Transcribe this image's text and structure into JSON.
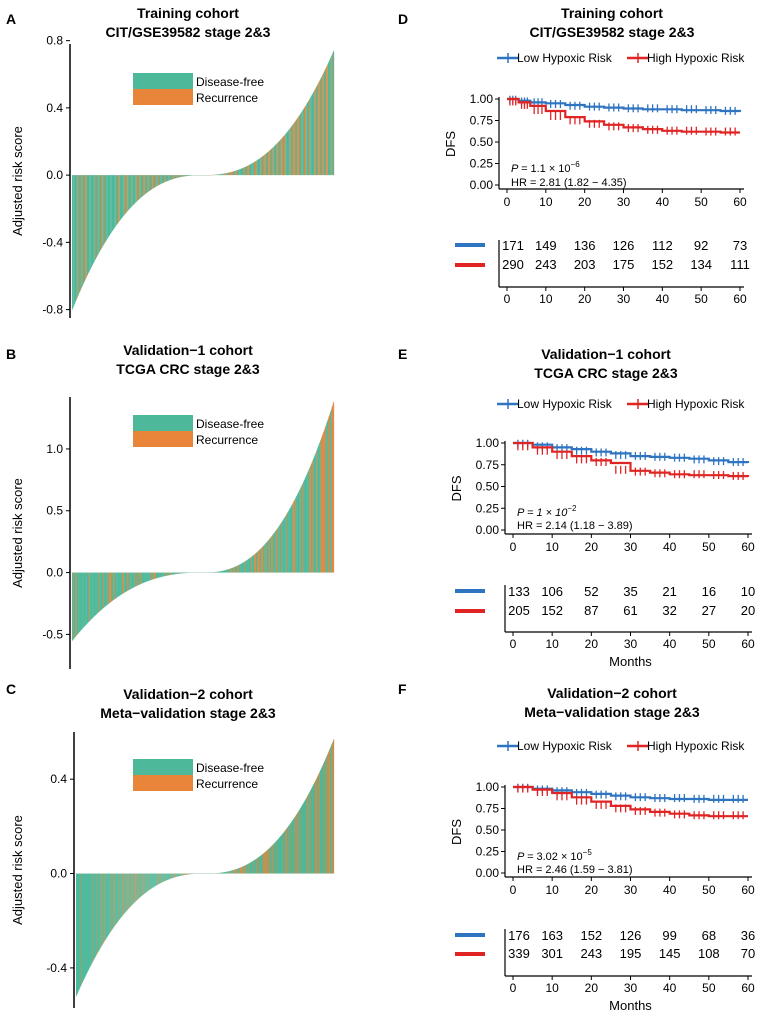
{
  "colors": {
    "disease_free": "#4DB89A",
    "recurrence": "#E8853A",
    "low_risk": "#2F74C0",
    "high_risk": "#E02424",
    "axis": "#000000"
  },
  "chart_data": [
    {
      "panel": "A",
      "type": "bar",
      "title": "Training cohort",
      "subtitle": "CIT/GSE39582 stage 2&3",
      "ylabel": "Adjusted risk score",
      "ylim": [
        -0.85,
        0.78
      ],
      "yticks": [
        -0.8,
        -0.4,
        0.0,
        0.4,
        0.8
      ],
      "ytick_labels": [
        "-0.8",
        "-0.4",
        "0.0",
        "0.4",
        "0.8"
      ],
      "legend": [
        "Disease-free",
        "Recurrence"
      ],
      "n_bars": 461,
      "min": -0.8,
      "max": 0.74,
      "recurrence_fraction": 0.25
    },
    {
      "panel": "B",
      "type": "bar",
      "title": "Validation−1 cohort",
      "subtitle": "TCGA CRC stage 2&3",
      "ylabel": "Adjusted risk score",
      "ylim": [
        -0.78,
        1.42
      ],
      "yticks": [
        -0.5,
        0.0,
        0.5,
        1.0
      ],
      "ytick_labels": [
        "-0.5",
        "0.0",
        "0.5",
        "1.0"
      ],
      "legend": [
        "Disease-free",
        "Recurrence"
      ],
      "n_bars": 338,
      "min": -0.55,
      "max": 1.38,
      "recurrence_fraction": 0.22
    },
    {
      "panel": "C",
      "type": "bar",
      "title": "Validation−2 cohort",
      "subtitle": "Meta−validation stage 2&3",
      "ylabel": "Adjusted risk score",
      "ylim": [
        -0.57,
        0.6
      ],
      "yticks": [
        -0.4,
        0.0,
        0.4
      ],
      "ytick_labels": [
        "-0.4",
        "0.0",
        "0.4"
      ],
      "legend": [
        "Disease-free",
        "Recurrence"
      ],
      "n_bars": 515,
      "min": -0.52,
      "max": 0.57,
      "recurrence_fraction": 0.22
    },
    {
      "panel": "D",
      "type": "line",
      "title": "Training cohort",
      "subtitle": "CIT/GSE39582 stage 2&3",
      "ylabel": "DFS",
      "xlabel": "",
      "xlim": [
        0,
        60
      ],
      "ylim": [
        0,
        1
      ],
      "xticks": [
        0,
        10,
        20,
        30,
        40,
        50,
        60
      ],
      "xtick_labels": [
        "0",
        "10",
        "20",
        "30",
        "40",
        "50",
        "60"
      ],
      "ytick_labels": [
        "0.00",
        "0.25",
        "0.50",
        "0.75",
        "1.00"
      ],
      "legend": [
        "Low Hypoxic Risk",
        "High Hypoxic Risk"
      ],
      "p_prefix": "P = ",
      "p_mantissa": "1.1",
      "p_times": " × 10",
      "p_exp": "−6",
      "hr_text": "HR = 2.81 (1.82 − 4.35)",
      "series": [
        {
          "name": "Low Hypoxic Risk",
          "x": [
            0,
            3,
            6,
            10,
            15,
            20,
            25,
            30,
            35,
            40,
            45,
            50,
            55,
            60
          ],
          "y": [
            1.0,
            0.98,
            0.96,
            0.95,
            0.93,
            0.91,
            0.9,
            0.89,
            0.88,
            0.88,
            0.87,
            0.87,
            0.86,
            0.85
          ]
        },
        {
          "name": "High Hypoxic Risk",
          "x": [
            0,
            3,
            6,
            10,
            15,
            20,
            25,
            30,
            35,
            40,
            45,
            50,
            55,
            60
          ],
          "y": [
            1.0,
            0.96,
            0.92,
            0.86,
            0.79,
            0.74,
            0.7,
            0.67,
            0.65,
            0.63,
            0.62,
            0.62,
            0.61,
            0.61
          ]
        }
      ],
      "risk_table": [
        [
          "171",
          "149",
          "136",
          "126",
          "112",
          "92",
          "73"
        ],
        [
          "290",
          "243",
          "203",
          "175",
          "152",
          "134",
          "111"
        ]
      ]
    },
    {
      "panel": "E",
      "type": "line",
      "title": "Validation−1 cohort",
      "subtitle": "TCGA CRC stage 2&3",
      "ylabel": "DFS",
      "xlabel": "Months",
      "xlim": [
        0,
        60
      ],
      "ylim": [
        0,
        1
      ],
      "xticks": [
        0,
        10,
        20,
        30,
        40,
        50,
        60
      ],
      "xtick_labels": [
        "0",
        "10",
        "20",
        "30",
        "40",
        "50",
        "60"
      ],
      "ytick_labels": [
        "0.00",
        "0.25",
        "0.50",
        "0.75",
        "1.00"
      ],
      "legend": [
        "Low Hypoxic Risk",
        "High Hypoxic Risk"
      ],
      "p_prefix": "P = 1 × 10",
      "p_exp": "−2",
      "hr_text": "HR = 2.14 (1.18 − 3.89)",
      "series": [
        {
          "name": "Low Hypoxic Risk",
          "x": [
            0,
            5,
            10,
            15,
            20,
            25,
            30,
            35,
            40,
            45,
            50,
            55,
            60
          ],
          "y": [
            1.0,
            0.98,
            0.95,
            0.93,
            0.9,
            0.88,
            0.85,
            0.84,
            0.83,
            0.82,
            0.8,
            0.78,
            0.77
          ]
        },
        {
          "name": "High Hypoxic Risk",
          "x": [
            0,
            5,
            10,
            15,
            20,
            25,
            30,
            35,
            40,
            45,
            50,
            55,
            60
          ],
          "y": [
            1.0,
            0.95,
            0.9,
            0.85,
            0.8,
            0.77,
            0.68,
            0.66,
            0.64,
            0.63,
            0.63,
            0.62,
            0.61
          ]
        }
      ],
      "risk_table": [
        [
          "133",
          "106",
          "52",
          "35",
          "21",
          "16",
          "10"
        ],
        [
          "205",
          "152",
          "87",
          "61",
          "32",
          "27",
          "20"
        ]
      ]
    },
    {
      "panel": "F",
      "type": "line",
      "title": "Validation−2 cohort",
      "subtitle": "Meta−validation stage 2&3",
      "ylabel": "DFS",
      "xlabel": "Months",
      "xlim": [
        0,
        60
      ],
      "ylim": [
        0,
        1
      ],
      "xticks": [
        0,
        10,
        20,
        30,
        40,
        50,
        60
      ],
      "xtick_labels": [
        "0",
        "10",
        "20",
        "30",
        "40",
        "50",
        "60"
      ],
      "ytick_labels": [
        "0.00",
        "0.25",
        "0.50",
        "0.75",
        "1.00"
      ],
      "legend": [
        "Low Hypoxic Risk",
        "High Hypoxic Risk"
      ],
      "p_prefix": "P = ",
      "p_mantissa": "3.02",
      "p_times": " × 10",
      "p_exp": "−5",
      "hr_text": "HR = 2.46 (1.59 − 3.81)",
      "series": [
        {
          "name": "Low Hypoxic Risk",
          "x": [
            0,
            5,
            10,
            15,
            20,
            25,
            30,
            35,
            40,
            45,
            50,
            55,
            60
          ],
          "y": [
            1.0,
            0.98,
            0.96,
            0.94,
            0.92,
            0.9,
            0.88,
            0.87,
            0.86,
            0.86,
            0.85,
            0.85,
            0.85
          ]
        },
        {
          "name": "High Hypoxic Risk",
          "x": [
            0,
            5,
            10,
            15,
            20,
            25,
            30,
            35,
            40,
            45,
            50,
            55,
            60
          ],
          "y": [
            1.0,
            0.97,
            0.93,
            0.88,
            0.83,
            0.78,
            0.74,
            0.71,
            0.69,
            0.67,
            0.66,
            0.66,
            0.66
          ]
        }
      ],
      "risk_table": [
        [
          "176",
          "163",
          "152",
          "126",
          "99",
          "68",
          "36"
        ],
        [
          "339",
          "301",
          "243",
          "195",
          "145",
          "108",
          "70"
        ]
      ]
    }
  ]
}
